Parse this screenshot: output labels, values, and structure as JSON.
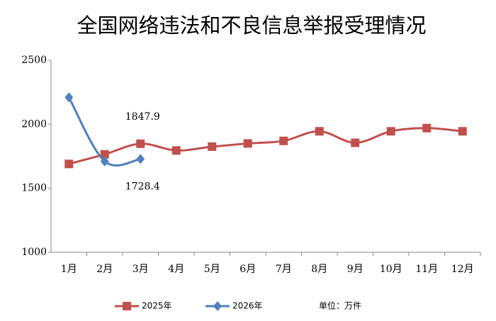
{
  "chart_data": {
    "type": "line",
    "title": "全国网络违法和不良信息举报受理情况",
    "categories": [
      "1月",
      "2月",
      "3月",
      "4月",
      "5月",
      "6月",
      "7月",
      "8月",
      "9月",
      "10月",
      "11月",
      "12月"
    ],
    "series": [
      {
        "name": "2025年",
        "color": "#c0504d",
        "marker": "square",
        "values": [
          1690,
          1765,
          1847.9,
          1795,
          1825,
          1850,
          1870,
          1945,
          1855,
          1945,
          1970,
          1945
        ],
        "value_labels": [
          null,
          null,
          "1847.9",
          null,
          null,
          null,
          null,
          null,
          null,
          null,
          null,
          null
        ]
      },
      {
        "name": "2026年",
        "color": "#4f81bd",
        "marker": "diamond",
        "values": [
          2210,
          1710,
          1728.4,
          null,
          null,
          null,
          null,
          null,
          null,
          null,
          null,
          null
        ],
        "value_labels": [
          null,
          null,
          "1728.4",
          null,
          null,
          null,
          null,
          null,
          null,
          null,
          null,
          null
        ]
      }
    ],
    "ylim": [
      1000,
      2500
    ],
    "yticks": [
      1000,
      1500,
      2000,
      2500
    ],
    "grid": false,
    "legend": "bottom",
    "smooth": true,
    "annotation": "单位：万件"
  }
}
